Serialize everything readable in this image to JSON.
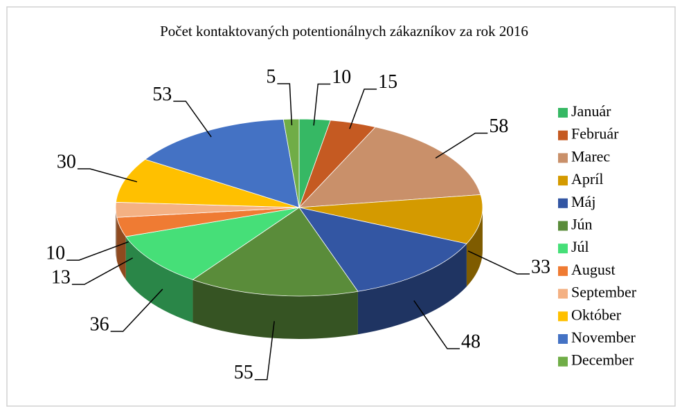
{
  "chart_data": {
    "type": "pie3d",
    "title": "Počet kontaktovaných potentionálnych zákazníkov za rok 2016",
    "categories": [
      "Január",
      "Február",
      "Marec",
      "Apríl",
      "Máj",
      "Jún",
      "Júl",
      "August",
      "September",
      "Október",
      "November",
      "December"
    ],
    "values": [
      10,
      15,
      58,
      33,
      48,
      55,
      36,
      13,
      10,
      30,
      53,
      5
    ],
    "colors": [
      "#36b864",
      "#c55a22",
      "#c9906a",
      "#d49a00",
      "#3356a3",
      "#5a8c3a",
      "#46df78",
      "#ef7b33",
      "#f4b183",
      "#ffc000",
      "#4472c4",
      "#70ad47"
    ],
    "legend": "right"
  }
}
